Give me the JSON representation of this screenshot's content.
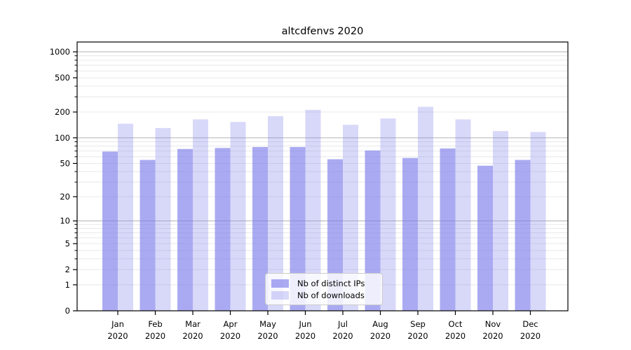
{
  "chart_data": {
    "type": "bar",
    "title": "altcdfenvs 2020",
    "xlabel": "",
    "ylabel": "",
    "y_scale": "log1p",
    "ylim": [
      0,
      1000
    ],
    "grid": true,
    "legend_position": "lower center",
    "months": [
      "Jan",
      "Feb",
      "Mar",
      "Apr",
      "May",
      "Jun",
      "Jul",
      "Aug",
      "Sep",
      "Oct",
      "Nov",
      "Dec"
    ],
    "year": "2020",
    "categories": [
      "Jan 2020",
      "Feb 2020",
      "Mar 2020",
      "Apr 2020",
      "May 2020",
      "Jun 2020",
      "Jul 2020",
      "Aug 2020",
      "Sep 2020",
      "Oct 2020",
      "Nov 2020",
      "Dec 2020"
    ],
    "series": [
      {
        "name": "Nb of distinct IPs",
        "color": "rgba(125,125,235,0.65)",
        "values": [
          69,
          55,
          74,
          76,
          78,
          78,
          56,
          71,
          58,
          75,
          47,
          55
        ]
      },
      {
        "name": "Nb of downloads",
        "color": "rgba(125,125,235,0.30)",
        "values": [
          146,
          130,
          164,
          153,
          179,
          212,
          142,
          168,
          230,
          164,
          120,
          117
        ]
      }
    ],
    "y_major_ticks": [
      0,
      1,
      2,
      5,
      10,
      20,
      50,
      100,
      200,
      500,
      1000
    ],
    "y_minor_ticks": [
      3,
      4,
      6,
      7,
      8,
      9,
      30,
      40,
      60,
      70,
      80,
      90,
      300,
      400,
      600,
      700,
      800,
      900
    ],
    "y_gridlines_light": [
      1,
      2,
      3,
      4,
      5,
      6,
      7,
      8,
      9,
      20,
      30,
      40,
      50,
      60,
      70,
      80,
      90,
      200,
      300,
      400,
      500,
      600,
      700,
      800,
      900
    ],
    "y_gridlines_dark": [
      10,
      100,
      1000
    ]
  },
  "colors": {
    "grid_light": "#e8e8e8",
    "grid_dark": "#b3b3b3",
    "spine": "#000000",
    "text": "#000000",
    "background": "#ffffff"
  }
}
